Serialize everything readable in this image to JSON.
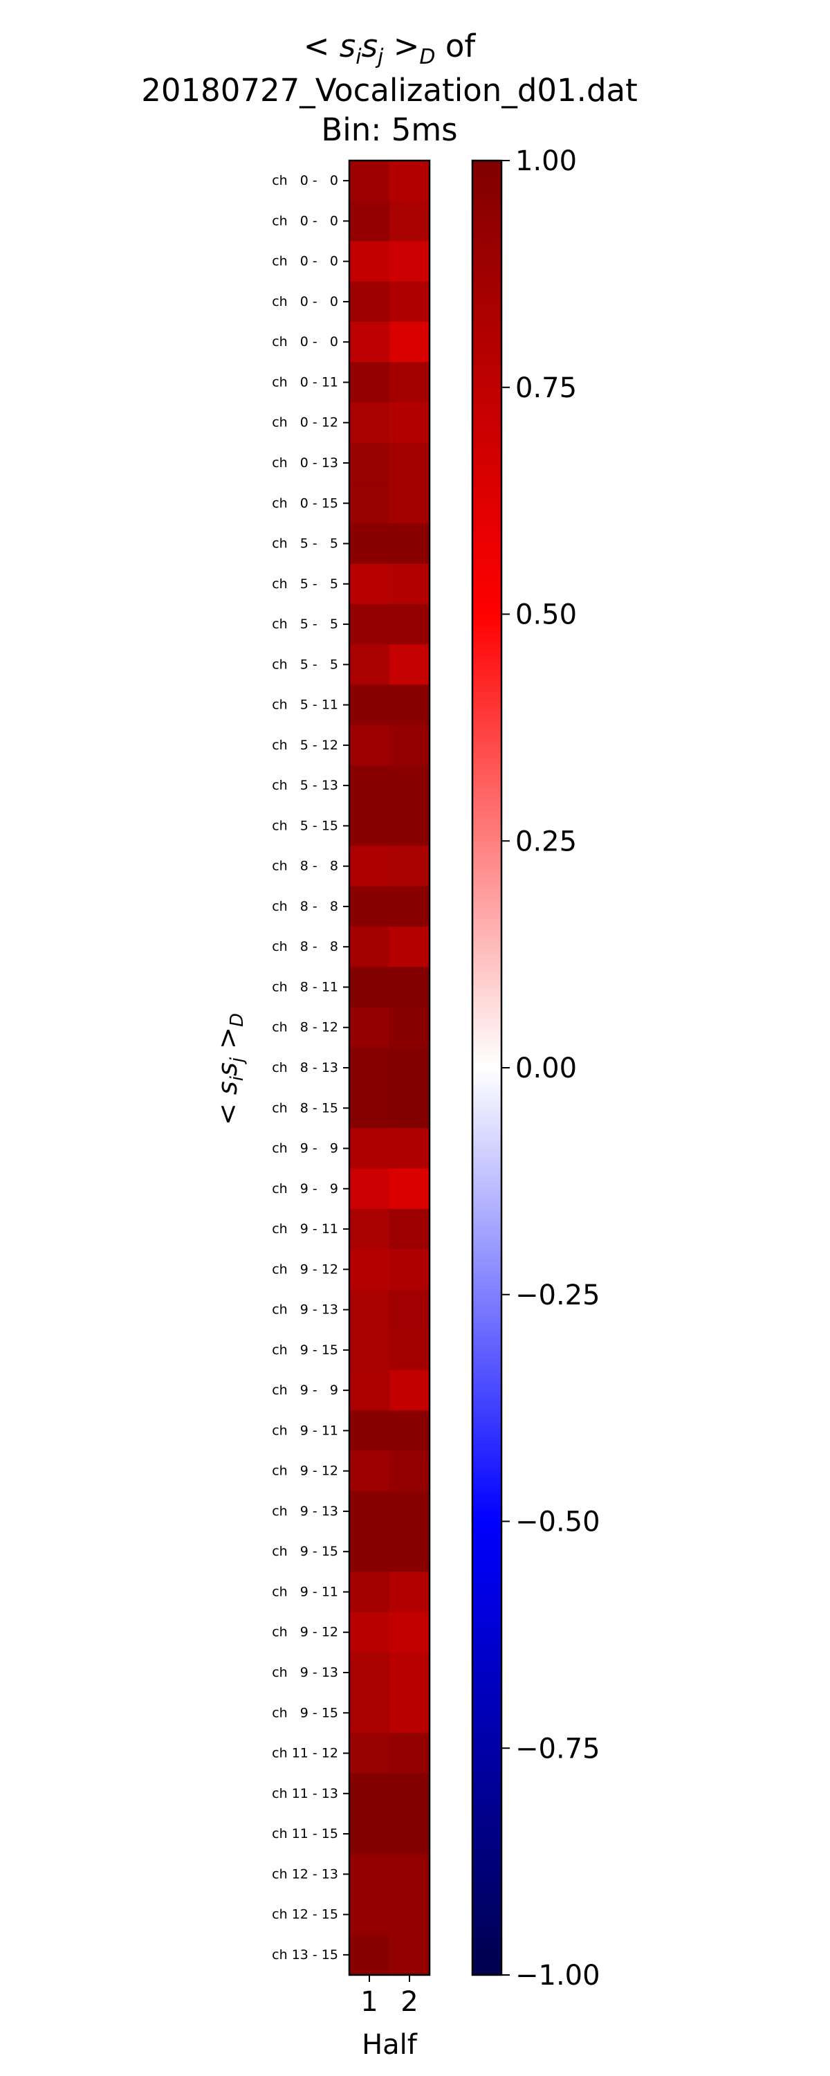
{
  "chart_data": {
    "type": "heatmap",
    "title": {
      "prefix": "< ",
      "s1": "s",
      "i": "i",
      "s2": "s",
      "j": "j",
      "gt": " >",
      "D": "D",
      "of": " of",
      "line2": "20180727_Vocalization_d01.dat",
      "line3": "Bin: 5ms"
    },
    "xlabel": "Half",
    "ylabel": {
      "lt": "< ",
      "s1": "s",
      "i": "i",
      "s2": "s",
      "j": "j",
      "gt": " >",
      "D": "D"
    },
    "x_categories": [
      "1",
      "2"
    ],
    "y_categories": [
      "ch   0 -   0",
      "ch   0 -   0",
      "ch   0 -   0",
      "ch   0 -   0",
      "ch   0 -   0",
      "ch   0 - 11",
      "ch   0 - 12",
      "ch   0 - 13",
      "ch   0 - 15",
      "ch   5 -   5",
      "ch   5 -   5",
      "ch   5 -   5",
      "ch   5 -   5",
      "ch   5 - 11",
      "ch   5 - 12",
      "ch   5 - 13",
      "ch   5 - 15",
      "ch   8 -   8",
      "ch   8 -   8",
      "ch   8 -   8",
      "ch   8 - 11",
      "ch   8 - 12",
      "ch   8 - 13",
      "ch   8 - 15",
      "ch   9 -   9",
      "ch   9 -   9",
      "ch   9 - 11",
      "ch   9 - 12",
      "ch   9 - 13",
      "ch   9 - 15",
      "ch   9 -   9",
      "ch   9 - 11",
      "ch   9 - 12",
      "ch   9 - 13",
      "ch   9 - 15",
      "ch   9 - 11",
      "ch   9 - 12",
      "ch   9 - 13",
      "ch   9 - 15",
      "ch 11 - 12",
      "ch 11 - 13",
      "ch 11 - 15",
      "ch 12 - 13",
      "ch 12 - 15",
      "ch 13 - 15"
    ],
    "values": [
      [
        0.88,
        0.8
      ],
      [
        0.92,
        0.84
      ],
      [
        0.74,
        0.7
      ],
      [
        0.88,
        0.82
      ],
      [
        0.76,
        0.65
      ],
      [
        0.93,
        0.86
      ],
      [
        0.84,
        0.8
      ],
      [
        0.9,
        0.86
      ],
      [
        0.9,
        0.86
      ],
      [
        0.96,
        0.96
      ],
      [
        0.78,
        0.8
      ],
      [
        0.92,
        0.92
      ],
      [
        0.84,
        0.73
      ],
      [
        0.97,
        0.97
      ],
      [
        0.89,
        0.92
      ],
      [
        0.96,
        0.96
      ],
      [
        0.96,
        0.96
      ],
      [
        0.82,
        0.84
      ],
      [
        0.96,
        0.96
      ],
      [
        0.86,
        0.79
      ],
      [
        0.99,
        0.99
      ],
      [
        0.92,
        0.96
      ],
      [
        0.98,
        0.99
      ],
      [
        0.98,
        0.99
      ],
      [
        0.82,
        0.82
      ],
      [
        0.7,
        0.64
      ],
      [
        0.84,
        0.89
      ],
      [
        0.79,
        0.82
      ],
      [
        0.84,
        0.87
      ],
      [
        0.84,
        0.86
      ],
      [
        0.83,
        0.74
      ],
      [
        0.96,
        0.96
      ],
      [
        0.88,
        0.92
      ],
      [
        0.97,
        0.97
      ],
      [
        0.97,
        0.97
      ],
      [
        0.86,
        0.8
      ],
      [
        0.78,
        0.74
      ],
      [
        0.84,
        0.78
      ],
      [
        0.84,
        0.78
      ],
      [
        0.9,
        0.93
      ],
      [
        0.99,
        0.99
      ],
      [
        0.99,
        0.99
      ],
      [
        0.92,
        0.93
      ],
      [
        0.92,
        0.93
      ],
      [
        0.96,
        0.93
      ]
    ],
    "colorbar": {
      "colormap": "seismic",
      "range": [
        -1.0,
        1.0
      ],
      "ticks": [
        1.0,
        0.75,
        0.5,
        0.25,
        0.0,
        -0.25,
        -0.5,
        -0.75,
        -1.0
      ],
      "tick_labels": [
        "1.00",
        "0.75",
        "0.50",
        "0.25",
        "0.00",
        "−0.25",
        "−0.50",
        "−0.75",
        "−1.00"
      ]
    },
    "grid": false
  }
}
